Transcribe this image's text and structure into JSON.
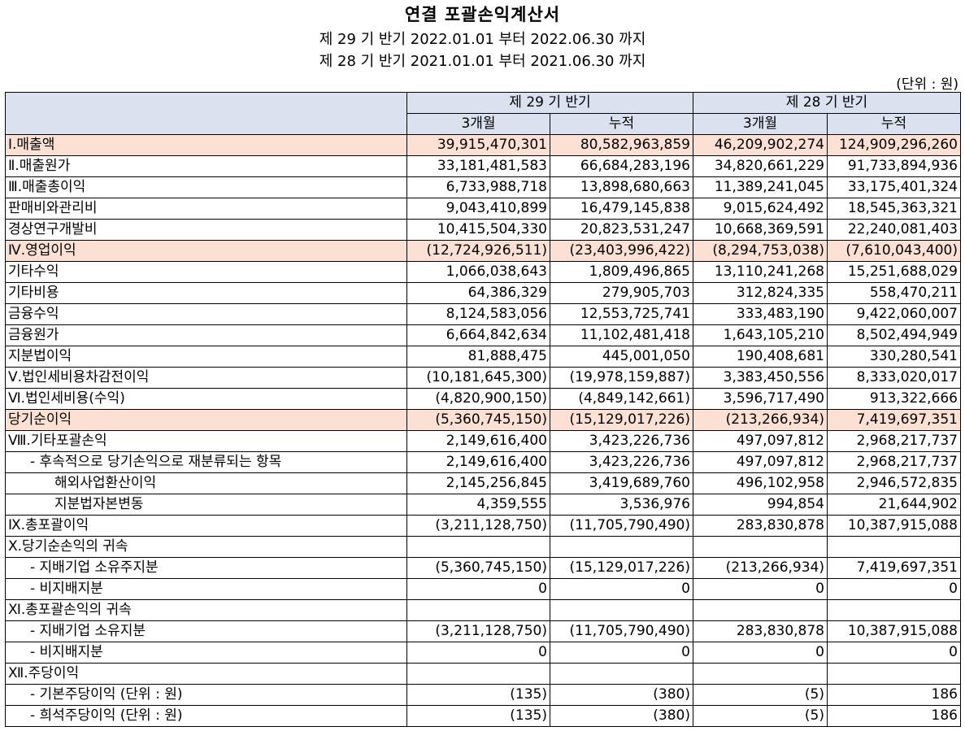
{
  "title": "연결 포괄손익계산서",
  "periods": [
    "제 29 기 반기 2022.01.01 부터 2022.06.30 까지",
    "제 28 기 반기 2021.01.01 부터 2021.06.30 까지"
  ],
  "unit": "(단위 : 원)",
  "header": {
    "period_a": "제 29 기 반기",
    "period_b": "제 28 기 반기",
    "cols": [
      "3개월",
      "누적",
      "3개월",
      "누적"
    ]
  },
  "rows": [
    {
      "label": "Ⅰ.매출액",
      "v": [
        "39,915,470,301",
        "80,582,963,859",
        "46,209,902,274",
        "124,909,296,260"
      ]
    },
    {
      "label": "Ⅱ.매출원가",
      "v": [
        "33,181,481,583",
        "66,684,283,196",
        "34,820,661,229",
        "91,733,894,936"
      ]
    },
    {
      "label": "Ⅲ.매출총이익",
      "v": [
        "6,733,988,718",
        "13,898,680,663",
        "11,389,241,045",
        "33,175,401,324"
      ]
    },
    {
      "label": "판매비와관리비",
      "v": [
        "9,043,410,899",
        "16,479,145,838",
        "9,015,624,492",
        "18,545,363,321"
      ]
    },
    {
      "label": "경상연구개발비",
      "v": [
        "10,415,504,330",
        "20,823,531,247",
        "10,668,369,591",
        "22,240,081,403"
      ]
    },
    {
      "label": "Ⅳ.영업이익",
      "v": [
        "(12,724,926,511)",
        "(23,403,996,422)",
        "(8,294,753,038)",
        "(7,610,043,400)"
      ]
    },
    {
      "label": "기타수익",
      "v": [
        "1,066,038,643",
        "1,809,496,865",
        "13,110,241,268",
        "15,251,688,029"
      ]
    },
    {
      "label": "기타비용",
      "v": [
        "64,386,329",
        "279,905,703",
        "312,824,335",
        "558,470,211"
      ]
    },
    {
      "label": "금융수익",
      "v": [
        "8,124,583,056",
        "12,553,725,741",
        "333,483,190",
        "9,422,060,007"
      ]
    },
    {
      "label": "금융원가",
      "v": [
        "6,664,842,634",
        "11,102,481,418",
        "1,643,105,210",
        "8,502,494,949"
      ]
    },
    {
      "label": "지분법이익",
      "v": [
        "81,888,475",
        "445,001,050",
        "190,408,681",
        "330,280,541"
      ]
    },
    {
      "label": "Ⅴ.법인세비용차감전이익",
      "v": [
        "(10,181,645,300)",
        "(19,978,159,887)",
        "3,383,450,556",
        "8,333,020,017"
      ]
    },
    {
      "label": "Ⅵ.법인세비용(수익)",
      "v": [
        "(4,820,900,150)",
        "(4,849,142,661)",
        "3,596,717,490",
        "913,322,666"
      ]
    },
    {
      "label": "당기순이익",
      "v": [
        "(5,360,745,150)",
        "(15,129,017,226)",
        "(213,266,934)",
        "7,419,697,351"
      ]
    },
    {
      "label": "Ⅷ.기타포괄손익",
      "v": [
        "2,149,616,400",
        "3,423,226,736",
        "497,097,812",
        "2,968,217,737"
      ]
    },
    {
      "label": "- 후속적으로 당기손익으로 재분류되는 항목",
      "v": [
        "2,149,616,400",
        "3,423,226,736",
        "497,097,812",
        "2,968,217,737"
      ]
    },
    {
      "label": "해외사업환산이익",
      "v": [
        "2,145,256,845",
        "3,419,689,760",
        "496,102,958",
        "2,946,572,835"
      ]
    },
    {
      "label": "지분법자본변동",
      "v": [
        "4,359,555",
        "3,536,976",
        "994,854",
        "21,644,902"
      ]
    },
    {
      "label": "Ⅸ.총포괄이익",
      "v": [
        "(3,211,128,750)",
        "(11,705,790,490)",
        "283,830,878",
        "10,387,915,088"
      ]
    },
    {
      "label": "Ⅹ.당기순손익의 귀속",
      "v": [
        "",
        "",
        "",
        ""
      ]
    },
    {
      "label": "- 지배기업 소유주지분",
      "v": [
        "(5,360,745,150)",
        "(15,129,017,226)",
        "(213,266,934)",
        "7,419,697,351"
      ]
    },
    {
      "label": "- 비지배지분",
      "v": [
        "0",
        "0",
        "0",
        "0"
      ]
    },
    {
      "label": "Ⅺ.총포괄손익의 귀속",
      "v": [
        "",
        "",
        "",
        ""
      ]
    },
    {
      "label": "- 지배기업 소유지분",
      "v": [
        "(3,211,128,750)",
        "(11,705,790,490)",
        "283,830,878",
        "10,387,915,088"
      ]
    },
    {
      "label": "- 비지배지분",
      "v": [
        "0",
        "0",
        "0",
        "0"
      ]
    },
    {
      "label": "Ⅻ.주당이익",
      "v": [
        "",
        "",
        "",
        ""
      ]
    },
    {
      "label": "- 기본주당이익 (단위 : 원)",
      "v": [
        "(135)",
        "(380)",
        "(5)",
        "186"
      ]
    },
    {
      "label": "- 희석주당이익 (단위 : 원)",
      "v": [
        "(135)",
        "(380)",
        "(5)",
        "186"
      ]
    }
  ],
  "highlight_color": "#fbe0d3",
  "header_color": "#dbe1ef"
}
